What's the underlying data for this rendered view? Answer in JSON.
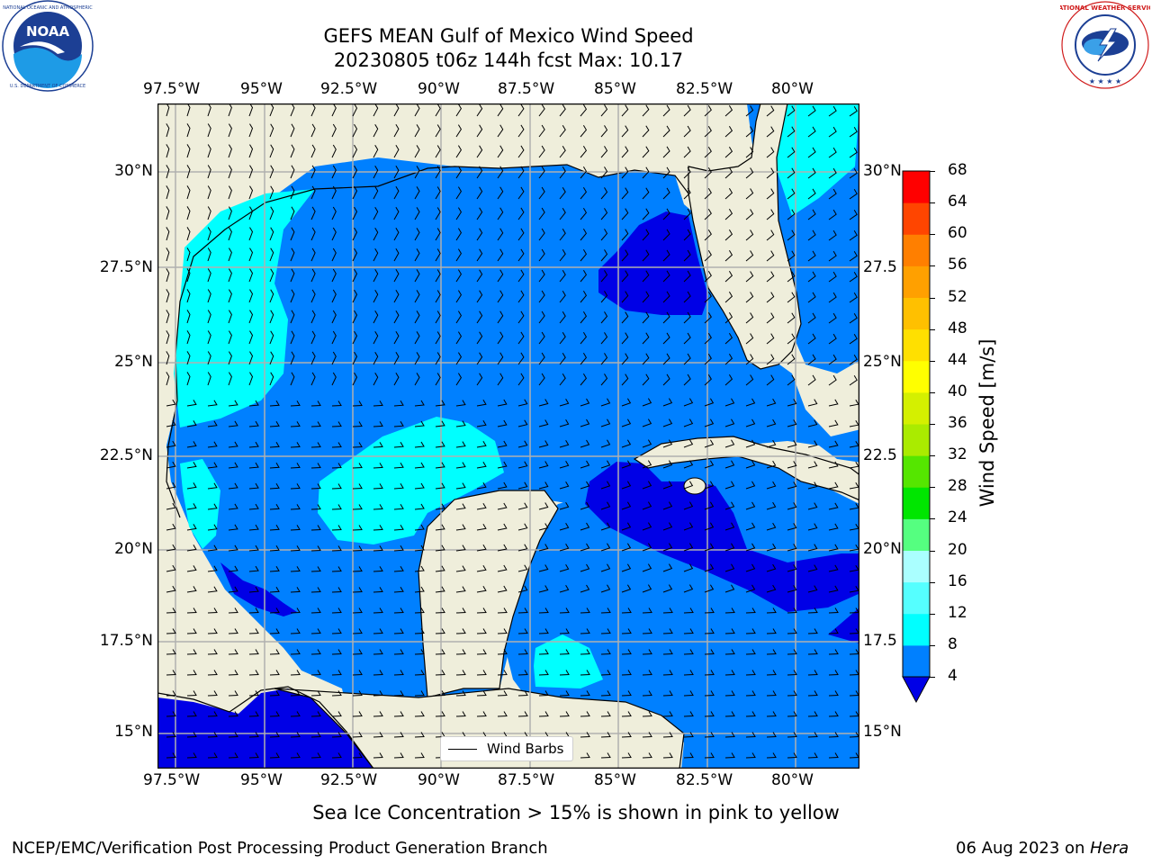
{
  "title": {
    "line1": "GEFS MEAN Gulf of Mexico Wind Speed",
    "line2": "20230805 t06z 144h fcst   Max: 10.17"
  },
  "logos": {
    "left": "noaa-logo",
    "right": "national-weather-service-logo"
  },
  "map": {
    "lon_ticks": [
      "97.5°W",
      "95°W",
      "92.5°W",
      "90°W",
      "87.5°W",
      "85°W",
      "82.5°W",
      "80°W"
    ],
    "lat_ticks_left": [
      "30°N",
      "27.5°N",
      "25°N",
      "22.5°N",
      "20°N",
      "17.5°N",
      "15°N"
    ],
    "lat_ticks_right": [
      "30°N",
      "27.5",
      "25°N",
      "22.5",
      "20°N",
      "17.5",
      "15°N"
    ],
    "lon_range": [
      -98,
      -78.3
    ],
    "lat_range": [
      14,
      31.7
    ],
    "land_color": "#efeedb",
    "grid": true
  },
  "legend": {
    "label": "Wind Barbs"
  },
  "colorbar": {
    "title": "Wind Speed [m/s]",
    "labels": [
      "4",
      "8",
      "12",
      "16",
      "20",
      "24",
      "28",
      "32",
      "36",
      "40",
      "44",
      "48",
      "52",
      "56",
      "60",
      "64",
      "68"
    ],
    "colors": [
      "#0000e6",
      "#0080ff",
      "#00ffff",
      "#55ffff",
      "#aaffff",
      "#55ff80",
      "#00e600",
      "#55e600",
      "#aaeb00",
      "#d4f000",
      "#ffff00",
      "#ffe000",
      "#ffc000",
      "#ffa000",
      "#ff7f00",
      "#ff4500",
      "#ff0000"
    ],
    "under_color": "#0000e6"
  },
  "caption": "Sea Ice Concentration > 15% is shown in pink to yellow",
  "footer": {
    "left": "NCEP/EMC/Verification Post Processing Product Generation Branch",
    "date": "06 Aug 2023 on ",
    "machine": "Hera"
  }
}
